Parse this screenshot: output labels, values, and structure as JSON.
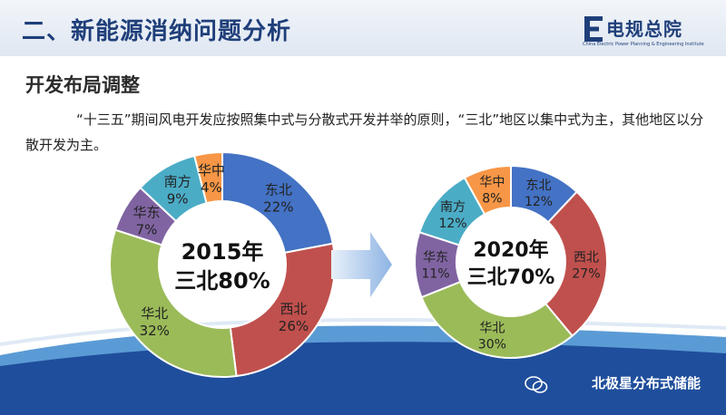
{
  "header": {
    "title": "二、新能源消纳问题分析"
  },
  "logo": {
    "name": "电规总院",
    "subtitle": "China Electric Power Planning & Engineering Institute"
  },
  "subtitle": "开发布局调整",
  "body_text": "“十三五”期间风电开发应按照集中式与分散式开发并举的原则，“三北”地区以集中式为主，其他地区以分散开发为主。",
  "watermark": "北极星分布式储能",
  "colors": {
    "header_text": "#1f3f7a",
    "arrow": "#8eb4e3",
    "wave_dark": "#1f4e9c",
    "wave_light": "#5b9bd5"
  },
  "chart_data": [
    {
      "type": "pie",
      "style": "donut",
      "center_label": [
        "2015年",
        "三北80%"
      ],
      "categories": [
        "东北",
        "西北",
        "华北",
        "华东",
        "南方",
        "华中"
      ],
      "values": [
        22,
        26,
        32,
        7,
        9,
        4
      ],
      "value_labels": [
        "22%",
        "26%",
        "32%",
        "7%",
        "9%",
        "4%"
      ],
      "colors": [
        "#4472c4",
        "#c0504d",
        "#9bbb59",
        "#8064a2",
        "#4bacc6",
        "#f79646"
      ]
    },
    {
      "type": "pie",
      "style": "donut",
      "center_label": [
        "2020年",
        "三北70%"
      ],
      "categories": [
        "东北",
        "西北",
        "华北",
        "华东",
        "南方",
        "华中"
      ],
      "values": [
        12,
        27,
        30,
        11,
        12,
        8
      ],
      "value_labels": [
        "12%",
        "27%",
        "30%",
        "11%",
        "12%",
        "8%"
      ],
      "colors": [
        "#4472c4",
        "#c0504d",
        "#9bbb59",
        "#8064a2",
        "#4bacc6",
        "#f79646"
      ]
    }
  ]
}
